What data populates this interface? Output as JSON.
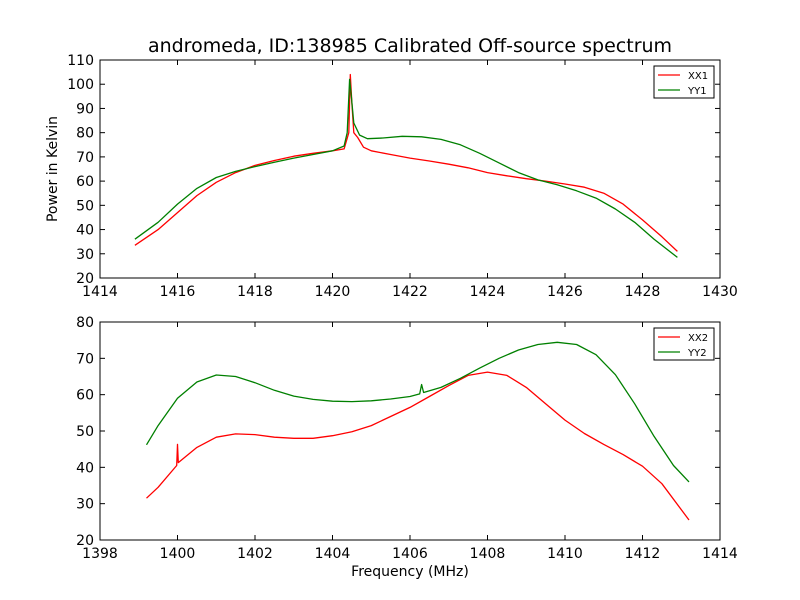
{
  "chart_data": [
    {
      "type": "line",
      "title": "andromeda, ID:138985 Calibrated Off-source spectrum",
      "xlabel": "",
      "ylabel": "Power in Kelvin",
      "xlim": [
        1414,
        1430
      ],
      "ylim": [
        20,
        110
      ],
      "xticks": [
        "1414",
        "1416",
        "1418",
        "1420",
        "1422",
        "1424",
        "1426",
        "1428",
        "1430"
      ],
      "yticks": [
        "20",
        "30",
        "40",
        "50",
        "60",
        "70",
        "80",
        "90",
        "100",
        "110"
      ],
      "legend_position": "top-right",
      "series": [
        {
          "name": "XX1",
          "color": "#ff0000",
          "points": [
            [
              1414.9,
              33.5
            ],
            [
              1415.5,
              40
            ],
            [
              1416.0,
              47
            ],
            [
              1416.5,
              54
            ],
            [
              1417.0,
              59.5
            ],
            [
              1417.5,
              63.5
            ],
            [
              1418.0,
              66.5
            ],
            [
              1418.5,
              68.5
            ],
            [
              1419.0,
              70.3
            ],
            [
              1419.5,
              71.5
            ],
            [
              1420.0,
              72.5
            ],
            [
              1420.3,
              73.3
            ],
            [
              1420.42,
              80
            ],
            [
              1420.46,
              104
            ],
            [
              1420.5,
              92
            ],
            [
              1420.55,
              80
            ],
            [
              1420.65,
              78
            ],
            [
              1420.8,
              74
            ],
            [
              1421.0,
              72.5
            ],
            [
              1421.5,
              71
            ],
            [
              1422.0,
              69.5
            ],
            [
              1422.5,
              68.3
            ],
            [
              1423.0,
              67
            ],
            [
              1423.5,
              65.5
            ],
            [
              1424.0,
              63.5
            ],
            [
              1424.5,
              62.2
            ],
            [
              1425.0,
              61
            ],
            [
              1425.5,
              60
            ],
            [
              1426.0,
              58.8
            ],
            [
              1426.5,
              57.5
            ],
            [
              1427.0,
              55
            ],
            [
              1427.5,
              50.5
            ],
            [
              1428.0,
              44
            ],
            [
              1428.5,
              37
            ],
            [
              1428.9,
              31
            ]
          ]
        },
        {
          "name": "YY1",
          "color": "#008000",
          "points": [
            [
              1414.9,
              36
            ],
            [
              1415.5,
              43
            ],
            [
              1416.0,
              50.5
            ],
            [
              1416.5,
              57
            ],
            [
              1417.0,
              61.5
            ],
            [
              1417.5,
              64
            ],
            [
              1418.0,
              66
            ],
            [
              1418.5,
              67.8
            ],
            [
              1419.0,
              69.5
            ],
            [
              1419.5,
              71
            ],
            [
              1420.0,
              72.5
            ],
            [
              1420.3,
              74.5
            ],
            [
              1420.38,
              80
            ],
            [
              1420.44,
              102
            ],
            [
              1420.48,
              96
            ],
            [
              1420.55,
              84
            ],
            [
              1420.7,
              79
            ],
            [
              1420.9,
              77.5
            ],
            [
              1421.3,
              77.8
            ],
            [
              1421.8,
              78.5
            ],
            [
              1422.3,
              78.3
            ],
            [
              1422.8,
              77.2
            ],
            [
              1423.3,
              75
            ],
            [
              1423.8,
              71.5
            ],
            [
              1424.3,
              67.5
            ],
            [
              1424.8,
              63.5
            ],
            [
              1425.3,
              60.5
            ],
            [
              1425.8,
              58.5
            ],
            [
              1426.3,
              56
            ],
            [
              1426.8,
              53
            ],
            [
              1427.3,
              48.5
            ],
            [
              1427.8,
              43
            ],
            [
              1428.3,
              36
            ],
            [
              1428.9,
              28.5
            ]
          ]
        }
      ]
    },
    {
      "type": "line",
      "title": "",
      "xlabel": "Frequency (MHz)",
      "ylabel": "",
      "xlim": [
        1398,
        1414
      ],
      "ylim": [
        20,
        80
      ],
      "xticks": [
        "1398",
        "1400",
        "1402",
        "1404",
        "1406",
        "1408",
        "1410",
        "1412",
        "1414"
      ],
      "yticks": [
        "20",
        "30",
        "40",
        "50",
        "60",
        "70",
        "80"
      ],
      "legend_position": "top-right",
      "series": [
        {
          "name": "XX2",
          "color": "#ff0000",
          "points": [
            [
              1399.2,
              31.5
            ],
            [
              1399.5,
              34.5
            ],
            [
              1399.98,
              40.5
            ],
            [
              1400.0,
              46.3
            ],
            [
              1400.02,
              41.3
            ],
            [
              1400.5,
              45.5
            ],
            [
              1401.0,
              48.3
            ],
            [
              1401.5,
              49.2
            ],
            [
              1402.0,
              49
            ],
            [
              1402.5,
              48.3
            ],
            [
              1403.0,
              48
            ],
            [
              1403.5,
              48
            ],
            [
              1404.0,
              48.7
            ],
            [
              1404.5,
              49.8
            ],
            [
              1405.0,
              51.5
            ],
            [
              1405.5,
              54
            ],
            [
              1406.0,
              56.5
            ],
            [
              1406.5,
              59.5
            ],
            [
              1407.0,
              62.5
            ],
            [
              1407.5,
              65.3
            ],
            [
              1408.0,
              66.2
            ],
            [
              1408.5,
              65.3
            ],
            [
              1409.0,
              62
            ],
            [
              1409.5,
              57.5
            ],
            [
              1410.0,
              53
            ],
            [
              1410.5,
              49.3
            ],
            [
              1411.0,
              46.3
            ],
            [
              1411.5,
              43.5
            ],
            [
              1412.0,
              40.3
            ],
            [
              1412.5,
              35.5
            ],
            [
              1413.2,
              25.5
            ]
          ]
        },
        {
          "name": "YY2",
          "color": "#008000",
          "points": [
            [
              1399.2,
              46.2
            ],
            [
              1399.5,
              51.5
            ],
            [
              1400.0,
              59
            ],
            [
              1400.5,
              63.5
            ],
            [
              1401.0,
              65.4
            ],
            [
              1401.5,
              65
            ],
            [
              1402.0,
              63.3
            ],
            [
              1402.5,
              61.2
            ],
            [
              1403.0,
              59.6
            ],
            [
              1403.5,
              58.7
            ],
            [
              1404.0,
              58.2
            ],
            [
              1404.5,
              58.1
            ],
            [
              1405.0,
              58.3
            ],
            [
              1405.5,
              58.8
            ],
            [
              1406.0,
              59.5
            ],
            [
              1406.25,
              60.2
            ],
            [
              1406.3,
              62.8
            ],
            [
              1406.35,
              60.6
            ],
            [
              1406.8,
              62
            ],
            [
              1407.3,
              64.5
            ],
            [
              1407.8,
              67.3
            ],
            [
              1408.3,
              70
            ],
            [
              1408.8,
              72.3
            ],
            [
              1409.3,
              73.8
            ],
            [
              1409.8,
              74.4
            ],
            [
              1410.3,
              73.8
            ],
            [
              1410.8,
              71
            ],
            [
              1411.3,
              65.5
            ],
            [
              1411.8,
              57.5
            ],
            [
              1412.3,
              48.5
            ],
            [
              1412.8,
              40.5
            ],
            [
              1413.2,
              36
            ]
          ]
        }
      ]
    }
  ]
}
